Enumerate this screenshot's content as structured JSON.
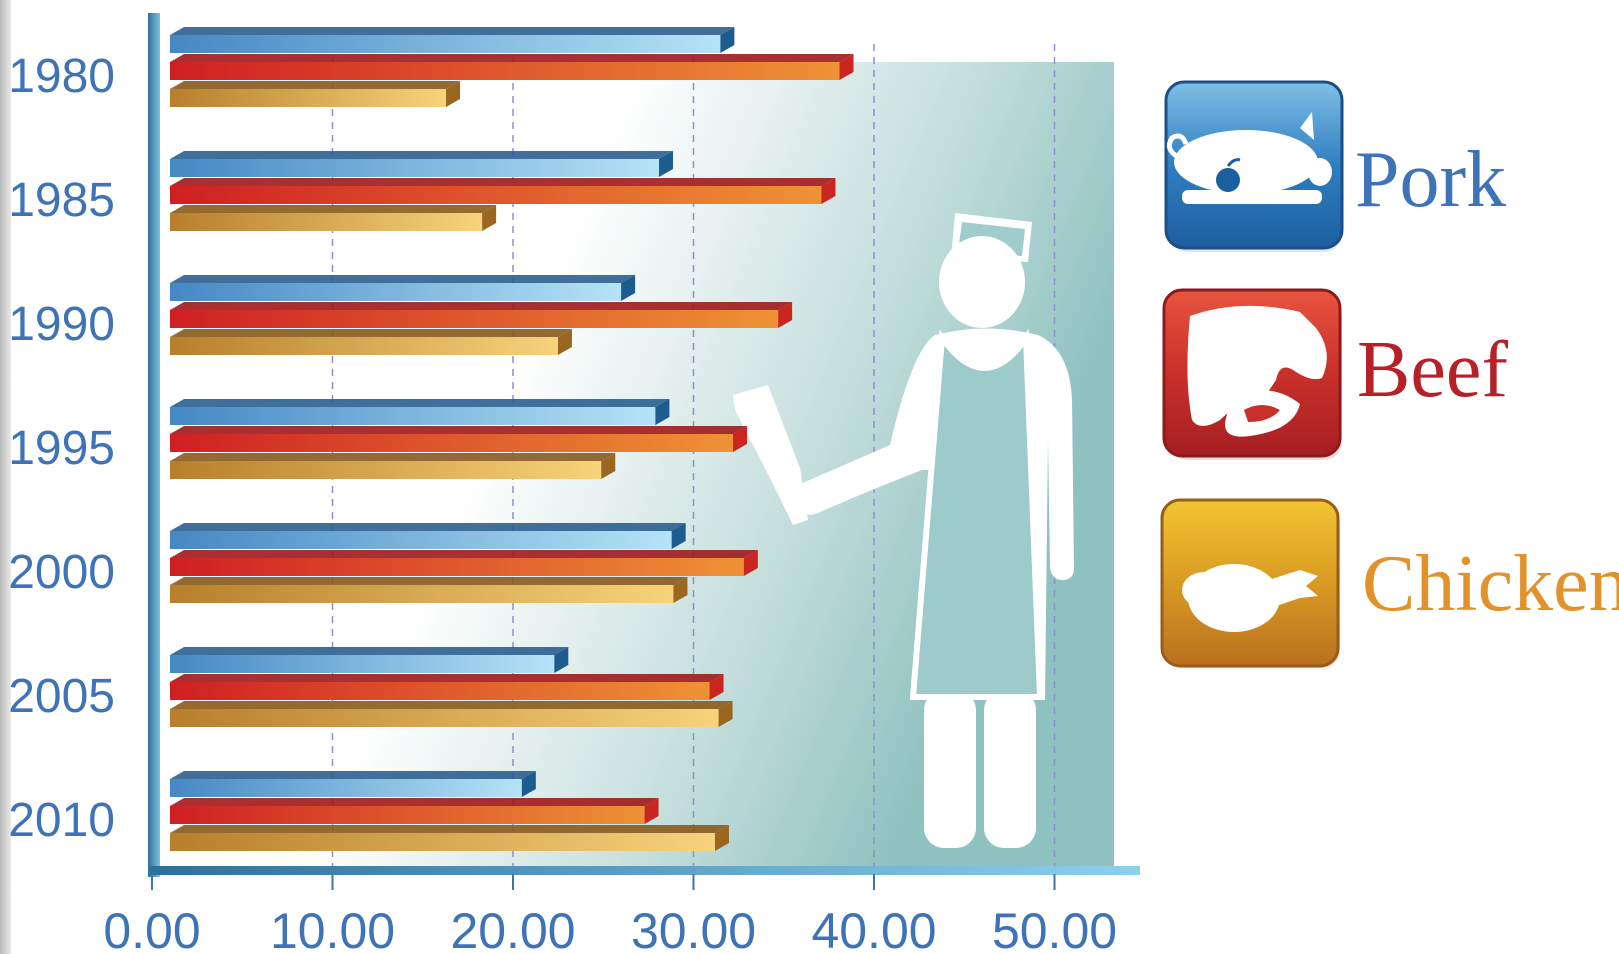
{
  "chart_data": {
    "type": "bar",
    "orientation": "horizontal",
    "categories": [
      "1980",
      "1985",
      "1990",
      "1995",
      "2000",
      "2005",
      "2010"
    ],
    "series": [
      {
        "name": "Pork",
        "color": "#4a8fc9",
        "values": [
          31.6,
          28.2,
          26.1,
          28.0,
          28.9,
          22.4,
          20.6
        ]
      },
      {
        "name": "Beef",
        "color": "#d42a25",
        "values": [
          38.2,
          37.2,
          34.8,
          32.3,
          32.9,
          31.0,
          27.4
        ]
      },
      {
        "name": "Chicken",
        "color": "#d8a33c",
        "values": [
          16.4,
          18.4,
          22.6,
          25.0,
          29.0,
          31.5,
          31.3
        ]
      }
    ],
    "x_ticks": [
      "0.00",
      "10.00",
      "20.00",
      "30.00",
      "40.00",
      "50.00"
    ],
    "xlim": [
      0,
      55
    ],
    "grid": true,
    "legend_position": "right",
    "title": "",
    "xlabel": "",
    "ylabel": ""
  },
  "legend": {
    "items": [
      {
        "label": "Pork",
        "icon": "pig-icon",
        "color": "#3f73b8"
      },
      {
        "label": "Beef",
        "icon": "cow-icon",
        "color": "#b52127"
      },
      {
        "label": "Chicken",
        "icon": "chicken-icon",
        "color": "#e2922b"
      }
    ]
  },
  "decor": {
    "figure": "butcher-figure-icon"
  }
}
